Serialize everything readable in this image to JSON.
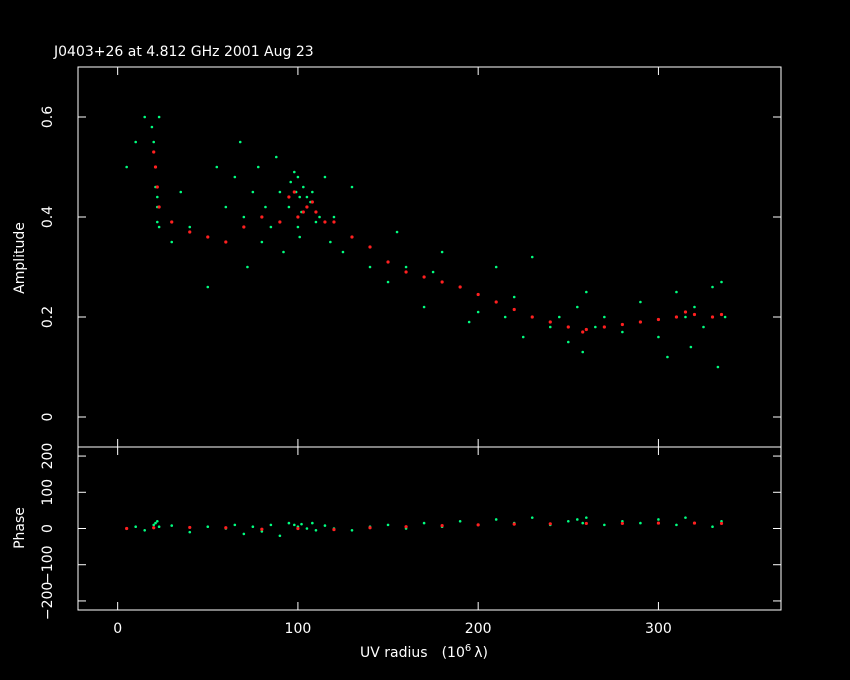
{
  "colors": {
    "background": "#000000",
    "axes": "#ffffff",
    "data_points": "#00ff80",
    "model_points": "#ff2020"
  },
  "chart_data": [
    {
      "type": "scatter",
      "panel": "amplitude",
      "title": "J0403+26 at 4.812 GHz 2001 Aug 23",
      "ylabel": "Amplitude",
      "xlim": [
        -22,
        368
      ],
      "ylim": [
        -0.06,
        0.7
      ],
      "x_ticks": [
        0,
        100,
        200,
        300
      ],
      "y_ticks": [
        0,
        0.2,
        0.4,
        0.6
      ],
      "y_tick_labels": [
        "0",
        "0.2",
        "0.4",
        "0.6"
      ],
      "series": [
        {
          "role": "data",
          "color": "#00ff80",
          "x": [
            5,
            10,
            15,
            19,
            20,
            21,
            21,
            22,
            22,
            22,
            23,
            23,
            30,
            35,
            40,
            50,
            55,
            60,
            65,
            68,
            70,
            72,
            75,
            78,
            80,
            82,
            85,
            88,
            90,
            92,
            95,
            96,
            98,
            99,
            100,
            100,
            101,
            101,
            102,
            103,
            105,
            107,
            108,
            110,
            112,
            115,
            118,
            120,
            125,
            130,
            140,
            150,
            155,
            160,
            170,
            175,
            180,
            190,
            195,
            200,
            210,
            215,
            220,
            225,
            230,
            240,
            245,
            250,
            255,
            258,
            260,
            265,
            270,
            280,
            290,
            300,
            305,
            310,
            315,
            318,
            320,
            325,
            330,
            333,
            335,
            337
          ],
          "y": [
            0.5,
            0.55,
            0.6,
            0.58,
            0.55,
            0.5,
            0.46,
            0.44,
            0.42,
            0.39,
            0.38,
            0.6,
            0.35,
            0.45,
            0.38,
            0.26,
            0.5,
            0.42,
            0.48,
            0.55,
            0.4,
            0.3,
            0.45,
            0.5,
            0.35,
            0.42,
            0.38,
            0.52,
            0.45,
            0.33,
            0.42,
            0.47,
            0.49,
            0.45,
            0.38,
            0.48,
            0.44,
            0.36,
            0.41,
            0.46,
            0.44,
            0.43,
            0.45,
            0.39,
            0.4,
            0.48,
            0.35,
            0.4,
            0.33,
            0.46,
            0.3,
            0.27,
            0.37,
            0.3,
            0.22,
            0.29,
            0.33,
            0.26,
            0.19,
            0.21,
            0.3,
            0.2,
            0.24,
            0.16,
            0.32,
            0.18,
            0.2,
            0.15,
            0.22,
            0.13,
            0.25,
            0.18,
            0.2,
            0.17,
            0.23,
            0.16,
            0.12,
            0.25,
            0.2,
            0.14,
            0.22,
            0.18,
            0.26,
            0.1,
            0.27,
            0.2
          ]
        },
        {
          "role": "model",
          "color": "#ff2020",
          "x": [
            20,
            21,
            22,
            23,
            30,
            40,
            50,
            60,
            70,
            80,
            90,
            95,
            98,
            100,
            103,
            105,
            108,
            110,
            115,
            120,
            130,
            140,
            150,
            160,
            170,
            180,
            190,
            200,
            210,
            220,
            230,
            240,
            250,
            258,
            260,
            270,
            280,
            290,
            300,
            310,
            315,
            320,
            330,
            335
          ],
          "y": [
            0.53,
            0.5,
            0.46,
            0.42,
            0.39,
            0.37,
            0.36,
            0.35,
            0.38,
            0.4,
            0.39,
            0.44,
            0.45,
            0.4,
            0.41,
            0.42,
            0.43,
            0.41,
            0.39,
            0.39,
            0.36,
            0.34,
            0.31,
            0.29,
            0.28,
            0.27,
            0.26,
            0.245,
            0.23,
            0.215,
            0.2,
            0.19,
            0.18,
            0.17,
            0.175,
            0.18,
            0.185,
            0.19,
            0.195,
            0.2,
            0.21,
            0.205,
            0.2,
            0.205
          ]
        }
      ]
    },
    {
      "type": "scatter",
      "panel": "phase",
      "xlabel": "UV radius",
      "xlabel_unit": "(10",
      "xlabel_exp": "6",
      "xlabel_sym": "λ)",
      "ylabel": "Phase",
      "xlim": [
        -22,
        368
      ],
      "ylim": [
        -225,
        225
      ],
      "x_ticks": [
        0,
        100,
        200,
        300
      ],
      "x_tick_labels": [
        "0",
        "100",
        "200",
        "300"
      ],
      "y_ticks": [
        -200,
        -100,
        0,
        100,
        200
      ],
      "y_tick_labels": [
        "−200",
        "−100",
        "0",
        "100",
        "200"
      ],
      "series": [
        {
          "role": "data",
          "color": "#00ff80",
          "x": [
            5,
            10,
            15,
            20,
            21,
            22,
            23,
            30,
            40,
            50,
            60,
            65,
            70,
            75,
            80,
            85,
            90,
            95,
            98,
            100,
            102,
            105,
            108,
            110,
            115,
            120,
            130,
            140,
            150,
            160,
            170,
            180,
            190,
            200,
            210,
            220,
            230,
            240,
            250,
            255,
            258,
            260,
            270,
            280,
            290,
            300,
            310,
            315,
            320,
            330,
            335
          ],
          "y": [
            0,
            5,
            -5,
            10,
            15,
            20,
            5,
            8,
            -10,
            5,
            0,
            10,
            -15,
            5,
            -8,
            10,
            -20,
            15,
            10,
            5,
            12,
            0,
            15,
            -5,
            8,
            0,
            -5,
            5,
            10,
            0,
            15,
            5,
            20,
            10,
            25,
            15,
            30,
            10,
            20,
            25,
            15,
            30,
            10,
            20,
            15,
            25,
            10,
            30,
            15,
            5,
            20
          ]
        },
        {
          "role": "model",
          "color": "#ff2020",
          "x": [
            5,
            20,
            40,
            60,
            80,
            100,
            120,
            140,
            160,
            180,
            200,
            220,
            240,
            260,
            280,
            300,
            320,
            335
          ],
          "y": [
            0,
            2,
            3,
            2,
            -2,
            0,
            -3,
            2,
            5,
            8,
            10,
            12,
            13,
            14,
            14,
            15,
            15,
            14
          ]
        }
      ]
    }
  ]
}
